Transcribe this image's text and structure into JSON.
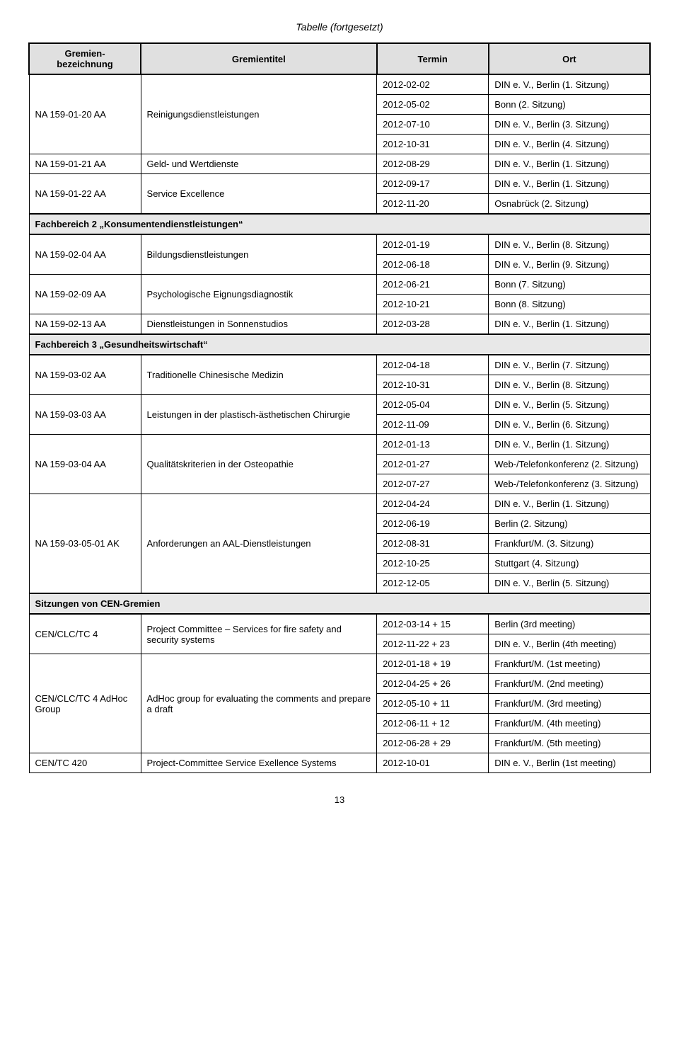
{
  "caption": "Tabelle (fortgesetzt)",
  "headers": {
    "col0": "Gremien-\nbezeichnung",
    "col1": "Gremientitel",
    "col2": "Termin",
    "col3": "Ort"
  },
  "groups": [
    {
      "code": "NA 159-01-20 AA",
      "title": "Reinigungsdienstleistungen",
      "rows": [
        {
          "date": "2012-02-02",
          "ort": "DIN e. V., Berlin (1. Sitzung)"
        },
        {
          "date": "2012-05-02",
          "ort": "Bonn (2. Sitzung)"
        },
        {
          "date": "2012-07-10",
          "ort": "DIN e. V., Berlin (3. Sitzung)"
        },
        {
          "date": "2012-10-31",
          "ort": "DIN e. V., Berlin (4. Sitzung)"
        }
      ]
    },
    {
      "code": "NA 159-01-21 AA",
      "title": "Geld- und Wertdienste",
      "rows": [
        {
          "date": "2012-08-29",
          "ort": "DIN e. V., Berlin (1. Sitzung)"
        }
      ]
    },
    {
      "code": "NA 159-01-22 AA",
      "title": "Service Excellence",
      "rows": [
        {
          "date": "2012-09-17",
          "ort": "DIN e. V., Berlin (1. Sitzung)"
        },
        {
          "date": "2012-11-20",
          "ort": "Osnabrück (2. Sitzung)"
        }
      ]
    },
    {
      "section": "Fachbereich 2 „Konsumentendienstleistungen“"
    },
    {
      "code": "NA 159-02-04 AA",
      "title": "Bildungsdienstleistungen",
      "rows": [
        {
          "date": "2012-01-19",
          "ort": "DIN e. V., Berlin (8. Sitzung)"
        },
        {
          "date": "2012-06-18",
          "ort": "DIN e. V., Berlin (9. Sitzung)"
        }
      ]
    },
    {
      "code": "NA 159-02-09 AA",
      "title": "Psychologische Eignungsdiagnostik",
      "rows": [
        {
          "date": "2012-06-21",
          "ort": "Bonn (7. Sitzung)"
        },
        {
          "date": "2012-10-21",
          "ort": "Bonn (8. Sitzung)"
        }
      ]
    },
    {
      "code": "NA 159-02-13 AA",
      "title": "Dienstleistungen in Sonnenstudios",
      "rows": [
        {
          "date": "2012-03-28",
          "ort": "DIN e. V., Berlin (1. Sitzung)"
        }
      ]
    },
    {
      "section": "Fachbereich 3 „Gesundheitswirtschaft“"
    },
    {
      "code": "NA 159-03-02 AA",
      "title": "Traditionelle Chinesische Medizin",
      "rows": [
        {
          "date": "2012-04-18",
          "ort": "DIN e. V., Berlin (7. Sitzung)"
        },
        {
          "date": "2012-10-31",
          "ort": "DIN e. V., Berlin (8. Sitzung)"
        }
      ]
    },
    {
      "code": "NA 159-03-03 AA",
      "title": "Leistungen in der plastisch-ästhetischen Chirurgie",
      "rows": [
        {
          "date": "2012-05-04",
          "ort": "DIN e. V., Berlin (5. Sitzung)"
        },
        {
          "date": "2012-11-09",
          "ort": "DIN e. V., Berlin (6. Sitzung)"
        }
      ]
    },
    {
      "code": "NA 159-03-04 AA",
      "title": "Qualitätskriterien in der Osteopathie",
      "rows": [
        {
          "date": "2012-01-13",
          "ort": "DIN e. V., Berlin (1. Sitzung)"
        },
        {
          "date": "2012-01-27",
          "ort": "Web-/Telefonkonferenz (2. Sitzung)"
        },
        {
          "date": "2012-07-27",
          "ort": "Web-/Telefonkonferenz (3. Sitzung)"
        }
      ]
    },
    {
      "code": "NA 159-03-05-01 AK",
      "title": "Anforderungen an AAL-Dienstleistungen",
      "rows": [
        {
          "date": "2012-04-24",
          "ort": "DIN e. V., Berlin (1. Sitzung)"
        },
        {
          "date": "2012-06-19",
          "ort": "Berlin (2. Sitzung)"
        },
        {
          "date": "2012-08-31",
          "ort": "Frankfurt/M. (3. Sitzung)"
        },
        {
          "date": "2012-10-25",
          "ort": "Stuttgart (4. Sitzung)"
        },
        {
          "date": "2012-12-05",
          "ort": "DIN e. V., Berlin (5. Sitzung)"
        }
      ]
    },
    {
      "section": "Sitzungen von CEN-Gremien"
    },
    {
      "code": "CEN/CLC/TC 4",
      "title": "Project Committee – Services for fire safety and security systems",
      "rows": [
        {
          "date": "2012-03-14 + 15",
          "ort": "Berlin (3rd meeting)"
        },
        {
          "date": "2012-11-22 + 23",
          "ort": "DIN e. V., Berlin (4th meeting)"
        }
      ]
    },
    {
      "code": "CEN/CLC/TC 4 AdHoc Group",
      "title": "AdHoc group for evaluating the comments and prepare a draft",
      "rows": [
        {
          "date": "2012-01-18 + 19",
          "ort": "Frankfurt/M. (1st meeting)"
        },
        {
          "date": "2012-04-25 + 26",
          "ort": "Frankfurt/M. (2nd meeting)"
        },
        {
          "date": "2012-05-10 + 11",
          "ort": "Frankfurt/M. (3rd meeting)"
        },
        {
          "date": "2012-06-11 + 12",
          "ort": "Frankfurt/M. (4th  meeting)"
        },
        {
          "date": "2012-06-28 + 29",
          "ort": "Frankfurt/M. (5th meeting)"
        }
      ]
    },
    {
      "code": "CEN/TC 420",
      "title": "Project-Committee Service Exellence Systems",
      "rows": [
        {
          "date": "2012-10-01",
          "ort": "DIN e. V., Berlin (1st meeting)"
        }
      ]
    }
  ],
  "page_number": "13"
}
